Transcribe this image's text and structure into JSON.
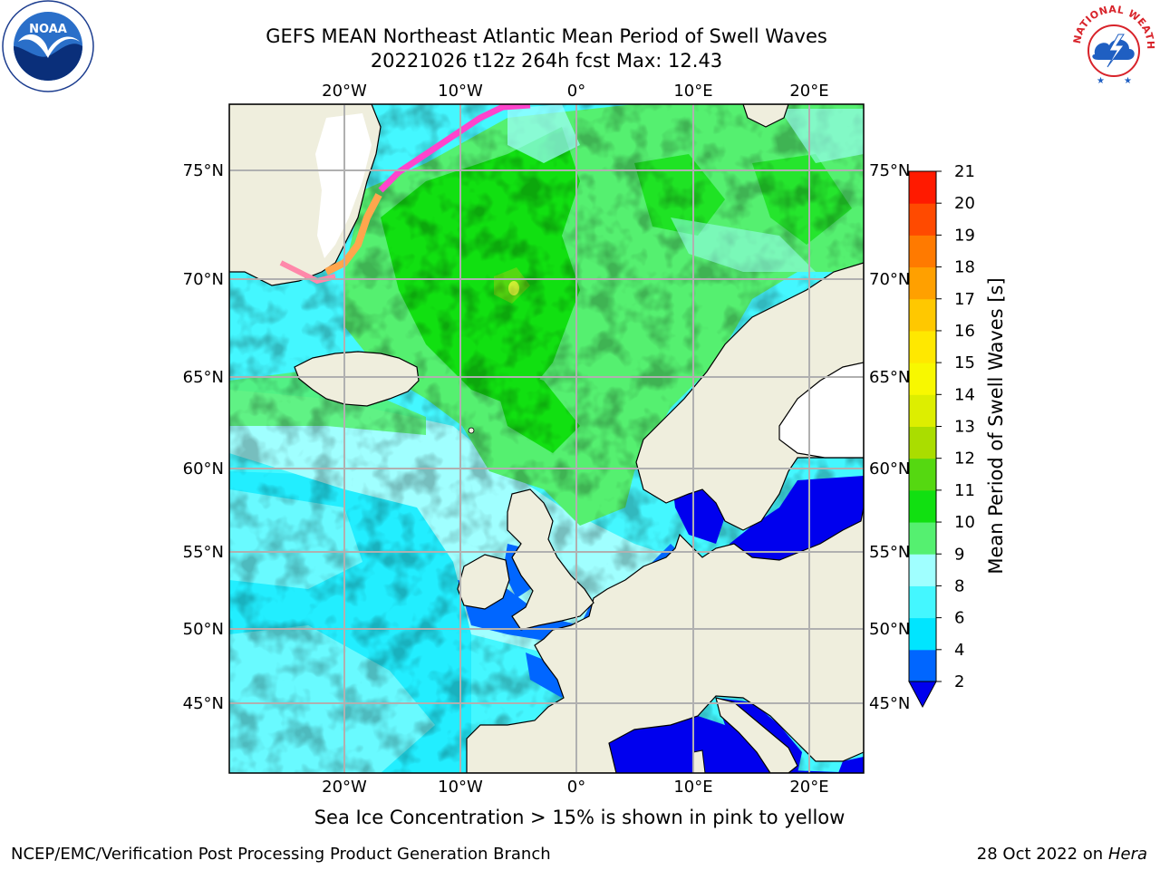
{
  "header": {
    "title_line1": "GEFS MEAN Northeast Atlantic Mean Period of Swell Waves",
    "title_line2": "20221026 t12z 264h fcst   Max: 12.43"
  },
  "logos": {
    "left": {
      "icon": "noaa-logo",
      "text": "NOAA"
    },
    "right": {
      "icon": "national-weather-service-logo",
      "text": "NATIONAL WEATHER SERVICE"
    }
  },
  "map": {
    "longitude_labels": [
      "20°W",
      "10°W",
      "0°",
      "10°E",
      "20°E"
    ],
    "latitude_labels": [
      "75°N",
      "70°N",
      "65°N",
      "60°N",
      "55°N",
      "50°N",
      "45°N"
    ],
    "colors": {
      "land": "#EFEEDD",
      "grid": "#B0B0B0",
      "coast": "#000000",
      "ice_edge": "#FF44CC"
    }
  },
  "colorbar": {
    "label": "Mean Period of Swell Waves [s]",
    "ticks": [
      "2",
      "4",
      "6",
      "8",
      "9",
      "10",
      "11",
      "12",
      "13",
      "14",
      "15",
      "16",
      "17",
      "18",
      "19",
      "20",
      "21"
    ],
    "colors": [
      "#0066FF",
      "#00E5FF",
      "#44F7FF",
      "#A0FFFF",
      "#55F070",
      "#11E011",
      "#55D811",
      "#AADD00",
      "#DDEE00",
      "#F8F800",
      "#FFE800",
      "#FFC800",
      "#FFA000",
      "#FF7A00",
      "#FF4A00",
      "#FF1A00"
    ],
    "under_color": "#0000EE"
  },
  "note": "Sea Ice Concentration > 15% is shown in pink to yellow",
  "footer": {
    "left": "NCEP/EMC/Verification Post Processing Product Generation Branch",
    "right_date": "28 Oct 2022 on ",
    "right_host": "Hera"
  }
}
